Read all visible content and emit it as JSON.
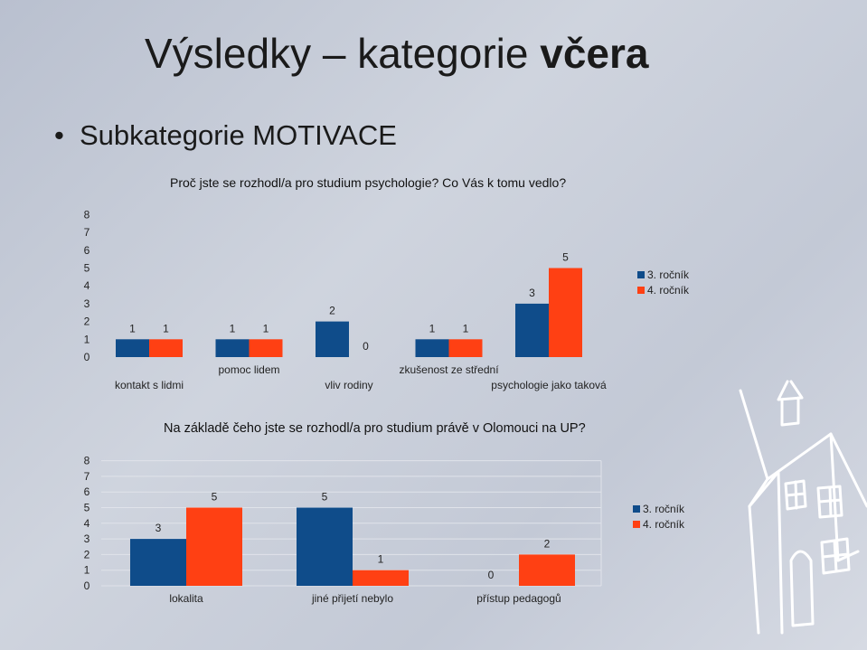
{
  "slide": {
    "title_main": "Výsledky – kategorie ",
    "title_bold": "včera",
    "bullet": "Subkategorie MOTIVACE"
  },
  "colors": {
    "series1": "#0f4c8a",
    "series2": "#ff4013"
  },
  "chart_data": [
    {
      "type": "bar",
      "title": "Proč jste se rozhodl/a pro studium psychologie? Co Vás k tomu vedlo?",
      "categories": [
        "kontakt s lidmi",
        "pomoc lidem",
        "vliv rodiny",
        "zkušenost ze střední",
        "psychologie jako taková"
      ],
      "series": [
        {
          "name": "3. ročník",
          "values": [
            1,
            1,
            2,
            1,
            3
          ]
        },
        {
          "name": "4. ročník",
          "values": [
            1,
            1,
            0,
            1,
            5
          ]
        }
      ],
      "yticks": [
        "0",
        "1",
        "2",
        "3",
        "4",
        "5",
        "6",
        "7",
        "8"
      ],
      "ylim": [
        0,
        8
      ],
      "grid": false,
      "legend": "right"
    },
    {
      "type": "bar",
      "title": "Na základě čeho jste se rozhodl/a pro studium právě v Olomouci na UP?",
      "categories": [
        "lokalita",
        "jiné přijetí nebylo",
        "přístup pedagogů"
      ],
      "series": [
        {
          "name": "3. ročník",
          "values": [
            3,
            5,
            0
          ]
        },
        {
          "name": "4. ročník",
          "values": [
            5,
            1,
            2
          ]
        }
      ],
      "yticks": [
        "0",
        "1",
        "2",
        "3",
        "4",
        "5",
        "6",
        "7",
        "8"
      ],
      "ylim": [
        0,
        8
      ],
      "grid": true,
      "legend": "right"
    }
  ]
}
